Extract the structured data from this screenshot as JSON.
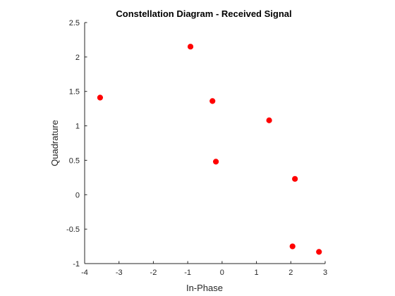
{
  "chart_data": {
    "type": "scatter",
    "title": "Constellation Diagram - Received Signal",
    "xlabel": "In-Phase",
    "ylabel": "Quadrature",
    "xlim": [
      -4,
      3
    ],
    "ylim": [
      -1,
      2.5
    ],
    "xticks": [
      -4,
      -3,
      -2,
      -1,
      0,
      1,
      2,
      3
    ],
    "yticks": [
      -1,
      -0.5,
      0,
      0.5,
      1,
      1.5,
      2,
      2.5
    ],
    "xtick_labels": [
      "-4",
      "-3",
      "-2",
      "-1",
      "0",
      "1",
      "2",
      "3"
    ],
    "ytick_labels": [
      "-1",
      "-0.5",
      "0",
      "0.5",
      "1",
      "1.5",
      "2",
      "2.5"
    ],
    "grid": false,
    "series": [
      {
        "color": "#ff0000",
        "points": [
          {
            "x": -3.55,
            "y": 1.41
          },
          {
            "x": -0.92,
            "y": 2.15
          },
          {
            "x": -0.28,
            "y": 1.36
          },
          {
            "x": -0.18,
            "y": 0.48
          },
          {
            "x": 1.37,
            "y": 1.08
          },
          {
            "x": 2.12,
            "y": 0.23
          },
          {
            "x": 2.05,
            "y": -0.75
          },
          {
            "x": 2.82,
            "y": -0.83
          }
        ]
      }
    ]
  }
}
